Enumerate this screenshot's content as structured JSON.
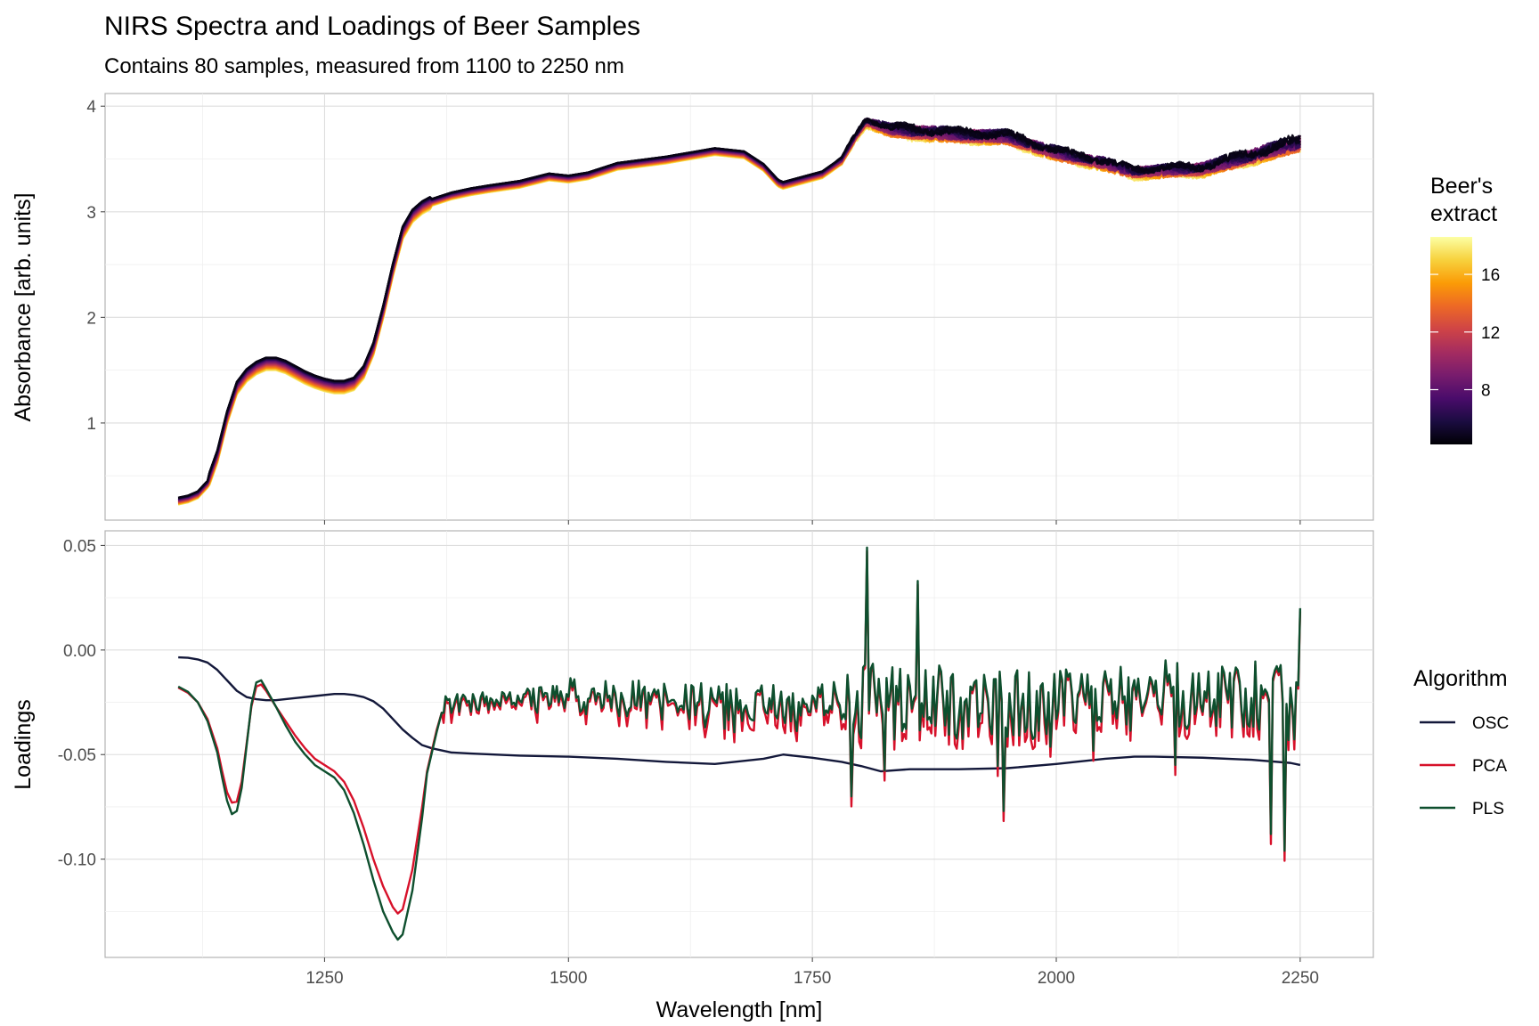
{
  "chart_data": {
    "type": "line",
    "title": "NIRS Spectra and Loadings of Beer Samples",
    "subtitle": "Contains 80 samples, measured from 1100 to 2250 nm",
    "xlabel": "Wavelength [nm]",
    "xlim": [
      1025,
      2325
    ],
    "xticks": [
      1250,
      1500,
      1750,
      2000,
      2250
    ],
    "panels": [
      {
        "ylabel": "Absorbance [arb. units]",
        "ylim": [
          0.08,
          4.12
        ],
        "yticks": [
          1,
          2,
          3,
          4
        ],
        "ytick_labels": [
          "1",
          "2",
          "3",
          "4"
        ],
        "color_legend": {
          "title_lines": [
            "Beer's",
            "extract"
          ],
          "min": 4.2,
          "max": 18.6,
          "ticks": [
            8,
            12,
            16
          ],
          "palette": [
            "#000004",
            "#1b0c41",
            "#4a0c6b",
            "#781c6d",
            "#a52c60",
            "#cf4446",
            "#ed6925",
            "#fb9b06",
            "#f7d13d",
            "#fcffa4"
          ]
        },
        "spectra_profile": [
          [
            1100,
            0.26
          ],
          [
            1110,
            0.28
          ],
          [
            1120,
            0.32
          ],
          [
            1130,
            0.42
          ],
          [
            1140,
            0.68
          ],
          [
            1150,
            1.05
          ],
          [
            1160,
            1.33
          ],
          [
            1170,
            1.45
          ],
          [
            1180,
            1.52
          ],
          [
            1190,
            1.56
          ],
          [
            1200,
            1.56
          ],
          [
            1210,
            1.53
          ],
          [
            1220,
            1.48
          ],
          [
            1230,
            1.43
          ],
          [
            1240,
            1.39
          ],
          [
            1250,
            1.36
          ],
          [
            1260,
            1.34
          ],
          [
            1270,
            1.34
          ],
          [
            1280,
            1.37
          ],
          [
            1290,
            1.48
          ],
          [
            1300,
            1.7
          ],
          [
            1310,
            2.05
          ],
          [
            1320,
            2.45
          ],
          [
            1330,
            2.8
          ],
          [
            1340,
            2.96
          ],
          [
            1350,
            3.04
          ],
          [
            1360,
            3.09
          ],
          [
            1380,
            3.15
          ],
          [
            1400,
            3.19
          ],
          [
            1420,
            3.22
          ],
          [
            1450,
            3.26
          ],
          [
            1480,
            3.33
          ],
          [
            1500,
            3.31
          ],
          [
            1520,
            3.34
          ],
          [
            1550,
            3.43
          ],
          [
            1600,
            3.49
          ],
          [
            1650,
            3.57
          ],
          [
            1680,
            3.54
          ],
          [
            1700,
            3.42
          ],
          [
            1715,
            3.27
          ],
          [
            1720,
            3.25
          ],
          [
            1740,
            3.3
          ],
          [
            1760,
            3.35
          ],
          [
            1780,
            3.48
          ],
          [
            1795,
            3.72
          ],
          [
            1805,
            3.85
          ],
          [
            1830,
            3.77
          ],
          [
            1860,
            3.75
          ],
          [
            1900,
            3.72
          ],
          [
            1950,
            3.7
          ],
          [
            2000,
            3.55
          ],
          [
            2050,
            3.45
          ],
          [
            2080,
            3.37
          ],
          [
            2100,
            3.38
          ],
          [
            2150,
            3.4
          ],
          [
            2200,
            3.52
          ],
          [
            2250,
            3.65
          ]
        ],
        "spectra_extract_shift_per_unit": -0.0055,
        "spectra_noise": [
          [
            1100,
            0.0
          ],
          [
            1770,
            0.0
          ],
          [
            1790,
            0.02
          ],
          [
            1850,
            0.05
          ],
          [
            2000,
            0.045
          ],
          [
            2100,
            0.04
          ],
          [
            2250,
            0.06
          ]
        ],
        "sample_count": 80
      },
      {
        "ylabel": "Loadings",
        "ylim": [
          -0.147,
          0.057
        ],
        "yticks": [
          0.05,
          0.0,
          -0.05,
          -0.1
        ],
        "ytick_labels": [
          "0.05",
          "0.00",
          "-0.05",
          "-0.10"
        ],
        "series": [
          {
            "name": "OSC",
            "color": "#13183a",
            "x": [
              1100,
              1110,
              1120,
              1130,
              1140,
              1150,
              1160,
              1170,
              1180,
              1190,
              1200,
              1220,
              1240,
              1260,
              1270,
              1280,
              1290,
              1300,
              1310,
              1320,
              1330,
              1340,
              1350,
              1360,
              1370,
              1380,
              1400,
              1450,
              1500,
              1550,
              1600,
              1650,
              1700,
              1720,
              1750,
              1780,
              1800,
              1820,
              1850,
              1900,
              1950,
              2000,
              2050,
              2080,
              2100,
              2150,
              2200,
              2240,
              2250
            ],
            "y": [
              -0.0035,
              -0.0037,
              -0.0045,
              -0.006,
              -0.0095,
              -0.0145,
              -0.0195,
              -0.0225,
              -0.0235,
              -0.024,
              -0.024,
              -0.023,
              -0.022,
              -0.021,
              -0.021,
              -0.0215,
              -0.0225,
              -0.0245,
              -0.028,
              -0.033,
              -0.038,
              -0.042,
              -0.0455,
              -0.047,
              -0.048,
              -0.049,
              -0.0495,
              -0.0505,
              -0.051,
              -0.052,
              -0.0535,
              -0.0545,
              -0.052,
              -0.05,
              -0.0515,
              -0.0535,
              -0.0555,
              -0.058,
              -0.057,
              -0.057,
              -0.0565,
              -0.0545,
              -0.052,
              -0.051,
              -0.051,
              -0.0515,
              -0.0525,
              -0.054,
              -0.055
            ]
          },
          {
            "name": "PCA",
            "color": "#d7112a",
            "x": [
              1100,
              1110,
              1120,
              1130,
              1140,
              1145,
              1150,
              1155,
              1160,
              1165,
              1170,
              1175,
              1180,
              1185,
              1190,
              1200,
              1210,
              1220,
              1230,
              1240,
              1250,
              1260,
              1270,
              1280,
              1290,
              1300,
              1310,
              1320,
              1325,
              1330,
              1340,
              1350,
              1355,
              1360,
              1365,
              1370
            ],
            "y": [
              -0.018,
              -0.0205,
              -0.025,
              -0.033,
              -0.047,
              -0.058,
              -0.068,
              -0.073,
              -0.0725,
              -0.063,
              -0.045,
              -0.027,
              -0.0175,
              -0.0165,
              -0.0195,
              -0.027,
              -0.034,
              -0.041,
              -0.047,
              -0.052,
              -0.055,
              -0.058,
              -0.063,
              -0.072,
              -0.085,
              -0.1,
              -0.113,
              -0.123,
              -0.126,
              -0.124,
              -0.105,
              -0.075,
              -0.058,
              -0.048,
              -0.038,
              -0.03
            ]
          },
          {
            "name": "PLS",
            "color": "#0e4f2e",
            "x": [
              1100,
              1110,
              1120,
              1130,
              1140,
              1145,
              1150,
              1155,
              1160,
              1165,
              1170,
              1175,
              1180,
              1185,
              1190,
              1200,
              1210,
              1220,
              1230,
              1240,
              1250,
              1260,
              1270,
              1280,
              1290,
              1300,
              1310,
              1320,
              1325,
              1330,
              1340,
              1350,
              1355,
              1360,
              1365,
              1370
            ],
            "y": [
              -0.0175,
              -0.02,
              -0.025,
              -0.034,
              -0.049,
              -0.061,
              -0.072,
              -0.0785,
              -0.077,
              -0.066,
              -0.046,
              -0.026,
              -0.0155,
              -0.0145,
              -0.0185,
              -0.027,
              -0.036,
              -0.044,
              -0.05,
              -0.055,
              -0.058,
              -0.061,
              -0.067,
              -0.078,
              -0.093,
              -0.11,
              -0.125,
              -0.135,
              -0.1385,
              -0.136,
              -0.115,
              -0.08,
              -0.059,
              -0.049,
              -0.039,
              -0.03
            ]
          }
        ],
        "noisy_region": {
          "x_start": 1370,
          "x_end": 2250,
          "step": 2,
          "baseline": [
            [
              1370,
              -0.026
            ],
            [
              1500,
              -0.022
            ],
            [
              1600,
              -0.024
            ],
            [
              1700,
              -0.026
            ],
            [
              1780,
              -0.024
            ],
            [
              1850,
              -0.025
            ],
            [
              2000,
              -0.026
            ],
            [
              2100,
              -0.021
            ],
            [
              2200,
              -0.022
            ],
            [
              2250,
              -0.02
            ]
          ],
          "amplitude": [
            [
              1370,
              0.004
            ],
            [
              1490,
              0.005
            ],
            [
              1500,
              0.008
            ],
            [
              1780,
              0.009
            ],
            [
              1800,
              0.017
            ],
            [
              2000,
              0.015
            ],
            [
              2200,
              0.016
            ],
            [
              2250,
              0.022
            ]
          ],
          "spikes": [
            [
              1806,
              0.049
            ],
            [
              1859,
              0.033
            ],
            [
              1946,
              -0.077
            ],
            [
              2234,
              -0.096
            ],
            [
              2250,
              0.02
            ],
            [
              2220,
              -0.088
            ],
            [
              1790,
              -0.07
            ]
          ]
        }
      }
    ],
    "legend": {
      "title": "Algorithm",
      "items": [
        "OSC",
        "PCA",
        "PLS"
      ]
    }
  }
}
